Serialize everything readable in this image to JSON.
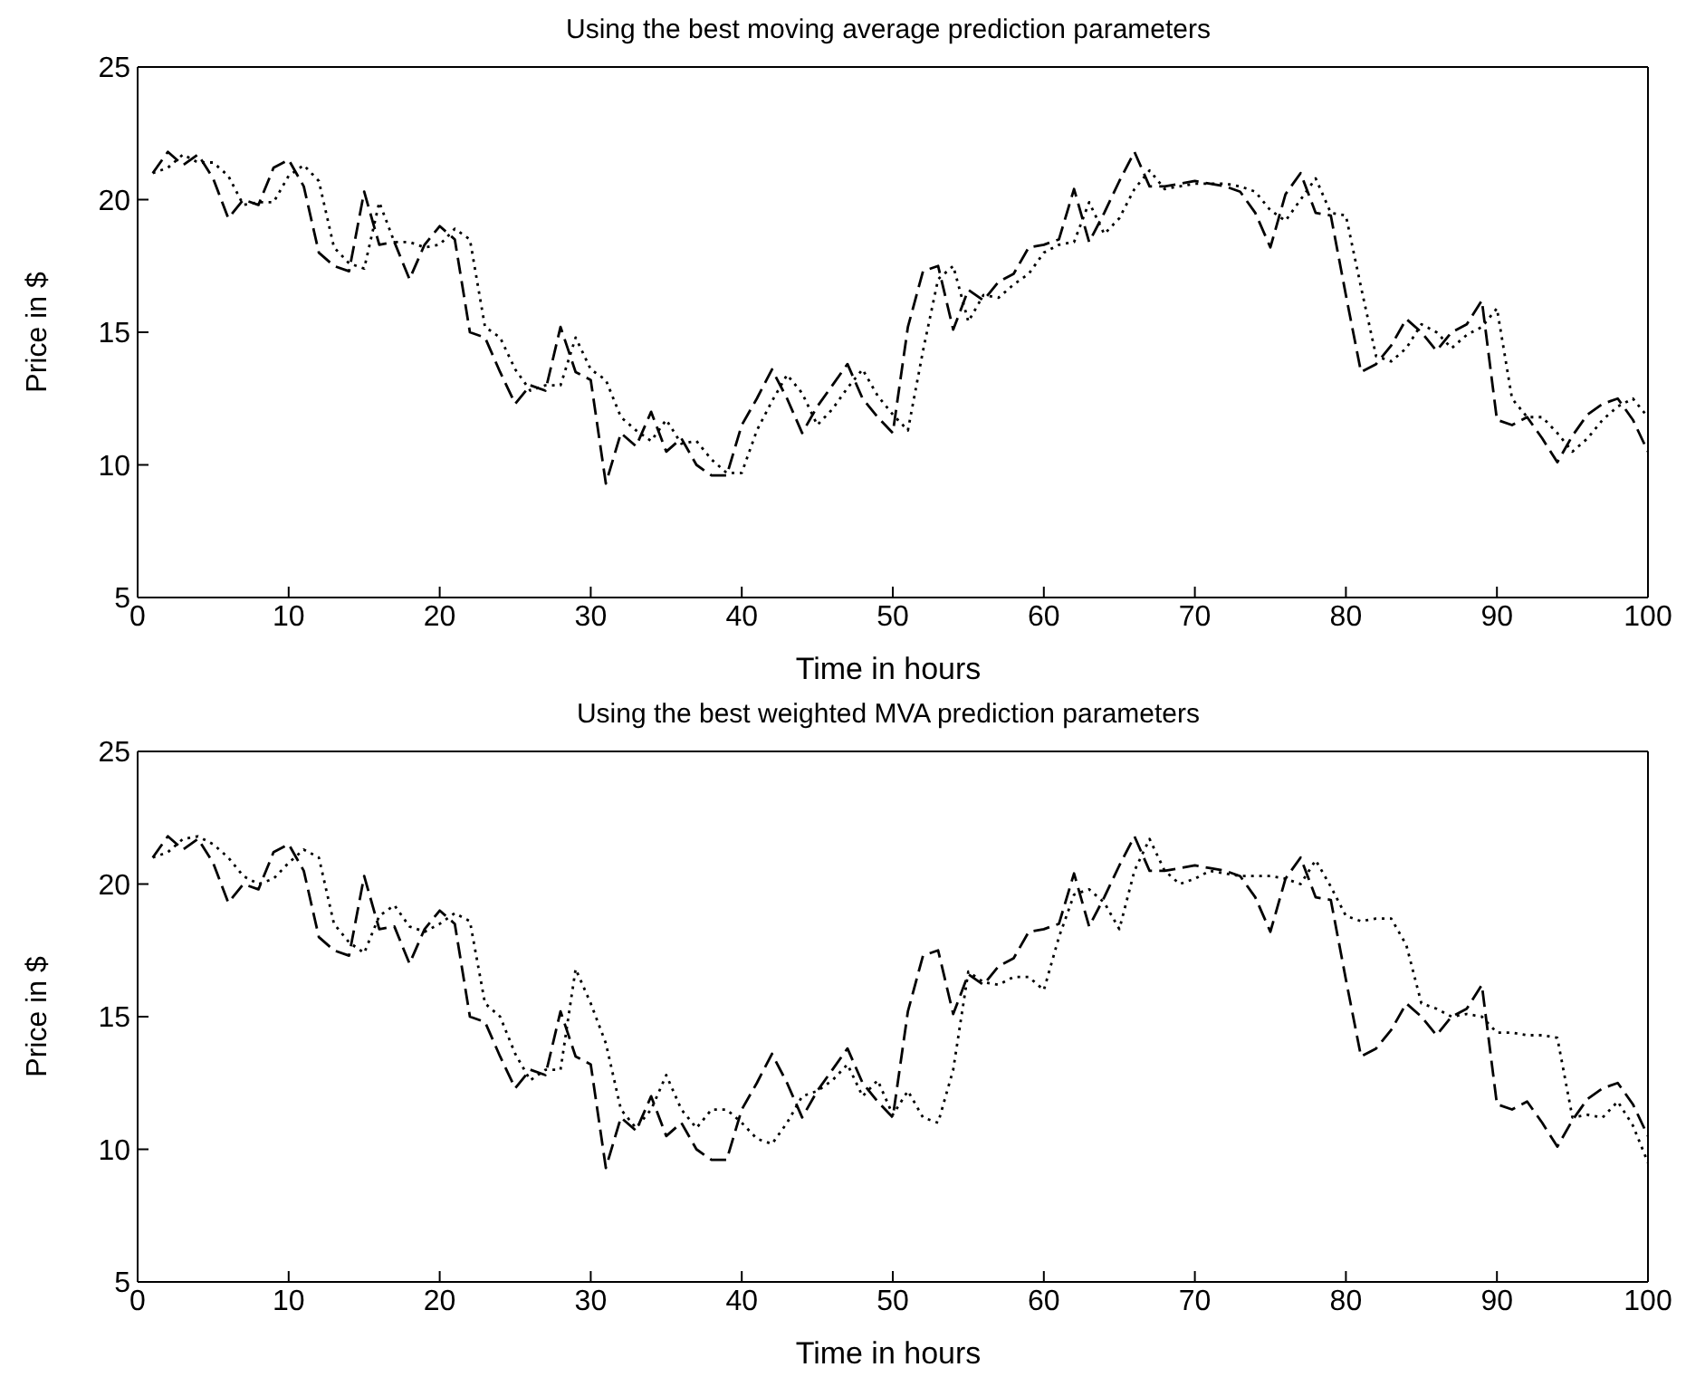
{
  "chart_data": [
    {
      "type": "line",
      "title": "Using the best moving average prediction parameters",
      "xlabel": "Time in hours",
      "ylabel": "Price in $",
      "x": [
        1,
        2,
        3,
        4,
        5,
        6,
        7,
        8,
        9,
        10,
        11,
        12,
        13,
        14,
        15,
        16,
        17,
        18,
        19,
        20,
        21,
        22,
        23,
        24,
        25,
        26,
        27,
        28,
        29,
        30,
        31,
        32,
        33,
        34,
        35,
        36,
        37,
        38,
        39,
        40,
        41,
        42,
        43,
        44,
        45,
        46,
        47,
        48,
        49,
        50,
        51,
        52,
        53,
        54,
        55,
        56,
        57,
        58,
        59,
        60,
        61,
        62,
        63,
        64,
        65,
        66,
        67,
        68,
        69,
        70,
        71,
        72,
        73,
        74,
        75,
        76,
        77,
        78,
        79,
        80,
        81,
        82,
        83,
        84,
        85,
        86,
        87,
        88,
        89,
        90,
        91,
        92,
        93,
        94,
        95,
        96,
        97,
        98,
        99,
        100
      ],
      "xlim": [
        0,
        100
      ],
      "xticks": [
        0,
        10,
        20,
        30,
        40,
        50,
        60,
        70,
        80,
        90,
        100
      ],
      "ylim": [
        5,
        25
      ],
      "yticks": [
        5,
        10,
        15,
        20,
        25
      ],
      "grid": false,
      "legend": false,
      "series": [
        {
          "color": "#000000",
          "line_style": "dashed",
          "values": [
            21,
            21.8,
            21.3,
            21.7,
            20.8,
            19.3,
            20,
            19.8,
            21.2,
            21.5,
            20.5,
            18,
            17.5,
            17.3,
            20.3,
            18.3,
            18.4,
            17,
            18.3,
            19,
            18.5,
            15,
            14.8,
            13.5,
            12.3,
            13,
            12.8,
            15.2,
            13.5,
            13.2,
            9.3,
            11.2,
            10.7,
            12,
            10.5,
            11,
            10,
            9.6,
            9.6,
            11.5,
            12.5,
            13.6,
            12.5,
            11.2,
            12.2,
            13,
            13.8,
            12.5,
            11.8,
            11.2,
            15.2,
            17.3,
            17.5,
            15.1,
            16.6,
            16.2,
            16.9,
            17.2,
            18.2,
            18.3,
            18.5,
            20.4,
            18.4,
            19.5,
            20.7,
            21.8,
            20.5,
            20.5,
            20.6,
            20.7,
            20.6,
            20.5,
            20.3,
            19.5,
            18.2,
            20.2,
            21,
            19.5,
            19.4,
            16.4,
            13.5,
            13.8,
            14.5,
            15.5,
            15,
            14.3,
            15,
            15.3,
            16.2,
            11.7,
            11.5,
            11.8,
            11,
            10.1,
            11.1,
            11.9,
            12.3,
            12.5,
            11.7,
            10.5
          ]
        },
        {
          "color": "#000000",
          "line_style": "dotted",
          "values": [
            21,
            21.2,
            21.7,
            21.4,
            21.4,
            20.9,
            19.8,
            19.9,
            19.9,
            20.9,
            21.3,
            20.7,
            18.2,
            17.6,
            17.4,
            19.9,
            18.4,
            18.4,
            18.2,
            18.3,
            18.9,
            18.5,
            15.2,
            14.8,
            13.6,
            12.8,
            13,
            13,
            14.8,
            13.6,
            13.2,
            11.8,
            11.3,
            10.9,
            11.7,
            10.8,
            10.9,
            10.2,
            9.7,
            9.7,
            11.3,
            12.4,
            13.4,
            12.7,
            11.5,
            12.1,
            12.9,
            13.6,
            12.6,
            11.9,
            11.3,
            14.3,
            17,
            17.5,
            15.4,
            16.4,
            16.3,
            16.8,
            17.2,
            18,
            18.3,
            18.4,
            19.9,
            18.7,
            19.3,
            20.4,
            21.1,
            20.4,
            20.5,
            20.6,
            20.6,
            20.6,
            20.5,
            20.3,
            19.6,
            19.2,
            20,
            20.8,
            19.5,
            19.4,
            16.7,
            14.1,
            13.9,
            14.4,
            15.3,
            15,
            14.4,
            14.9,
            15.2,
            15.9,
            12.5,
            11.8,
            11.8,
            11.2,
            10.5,
            11,
            11.7,
            12.2,
            12.5,
            11.8
          ]
        }
      ]
    },
    {
      "type": "line",
      "title": "Using the best weighted MVA prediction parameters",
      "xlabel": "Time in hours",
      "ylabel": "Price in $",
      "x": [
        1,
        2,
        3,
        4,
        5,
        6,
        7,
        8,
        9,
        10,
        11,
        12,
        13,
        14,
        15,
        16,
        17,
        18,
        19,
        20,
        21,
        22,
        23,
        24,
        25,
        26,
        27,
        28,
        29,
        30,
        31,
        32,
        33,
        34,
        35,
        36,
        37,
        38,
        39,
        40,
        41,
        42,
        43,
        44,
        45,
        46,
        47,
        48,
        49,
        50,
        51,
        52,
        53,
        54,
        55,
        56,
        57,
        58,
        59,
        60,
        61,
        62,
        63,
        64,
        65,
        66,
        67,
        68,
        69,
        70,
        71,
        72,
        73,
        74,
        75,
        76,
        77,
        78,
        79,
        80,
        81,
        82,
        83,
        84,
        85,
        86,
        87,
        88,
        89,
        90,
        91,
        92,
        93,
        94,
        95,
        96,
        97,
        98,
        99,
        100
      ],
      "xlim": [
        0,
        100
      ],
      "xticks": [
        0,
        10,
        20,
        30,
        40,
        50,
        60,
        70,
        80,
        90,
        100
      ],
      "ylim": [
        5,
        25
      ],
      "yticks": [
        5,
        10,
        15,
        20,
        25
      ],
      "grid": false,
      "legend": false,
      "series": [
        {
          "color": "#000000",
          "line_style": "dashed",
          "values": [
            21,
            21.8,
            21.3,
            21.7,
            20.8,
            19.3,
            20,
            19.8,
            21.2,
            21.5,
            20.5,
            18,
            17.5,
            17.3,
            20.3,
            18.3,
            18.4,
            17,
            18.3,
            19,
            18.5,
            15,
            14.8,
            13.5,
            12.3,
            13,
            12.8,
            15.2,
            13.5,
            13.2,
            9.3,
            11.2,
            10.7,
            12,
            10.5,
            11,
            10,
            9.6,
            9.6,
            11.5,
            12.5,
            13.6,
            12.5,
            11.2,
            12.2,
            13,
            13.8,
            12.5,
            11.8,
            11.2,
            15.2,
            17.3,
            17.5,
            15.1,
            16.6,
            16.2,
            16.9,
            17.2,
            18.2,
            18.3,
            18.5,
            20.4,
            18.4,
            19.5,
            20.7,
            21.8,
            20.5,
            20.5,
            20.6,
            20.7,
            20.6,
            20.5,
            20.3,
            19.5,
            18.2,
            20.2,
            21,
            19.5,
            19.4,
            16.4,
            13.5,
            13.8,
            14.5,
            15.5,
            15,
            14.3,
            15,
            15.3,
            16.2,
            11.7,
            11.5,
            11.8,
            11,
            10.1,
            11.1,
            11.9,
            12.3,
            12.5,
            11.7,
            10.5
          ]
        },
        {
          "color": "#000000",
          "line_style": "dotted",
          "values": [
            21,
            21.2,
            21.7,
            21.8,
            21.5,
            21,
            20.3,
            20,
            20.2,
            20.8,
            21.3,
            21,
            18.5,
            17.8,
            17.4,
            18.8,
            19.2,
            18.4,
            18.2,
            18.5,
            18.9,
            18.6,
            15.5,
            15,
            13.6,
            12.6,
            13,
            13,
            16.8,
            15.5,
            14,
            11.5,
            10.8,
            11.5,
            12.8,
            11.5,
            10.8,
            11.5,
            11.5,
            11,
            10.4,
            10.2,
            11,
            12,
            12.2,
            12.6,
            13.2,
            12,
            12.6,
            11.3,
            12.2,
            11.2,
            11,
            13,
            16.7,
            16.3,
            16.2,
            16.5,
            16.5,
            16,
            18,
            19.6,
            19.8,
            19.3,
            18.3,
            20.5,
            21.7,
            20.5,
            20,
            20.2,
            20.5,
            20.4,
            20.3,
            20.3,
            20.3,
            20.2,
            20,
            20.9,
            19.9,
            18.8,
            18.6,
            18.7,
            18.7,
            17.7,
            15.5,
            15.3,
            15,
            15.1,
            15,
            14.4,
            14.4,
            14.3,
            14.3,
            14.2,
            11.2,
            11.3,
            11.2,
            11.8,
            10.9,
            9.5
          ]
        }
      ]
    }
  ]
}
